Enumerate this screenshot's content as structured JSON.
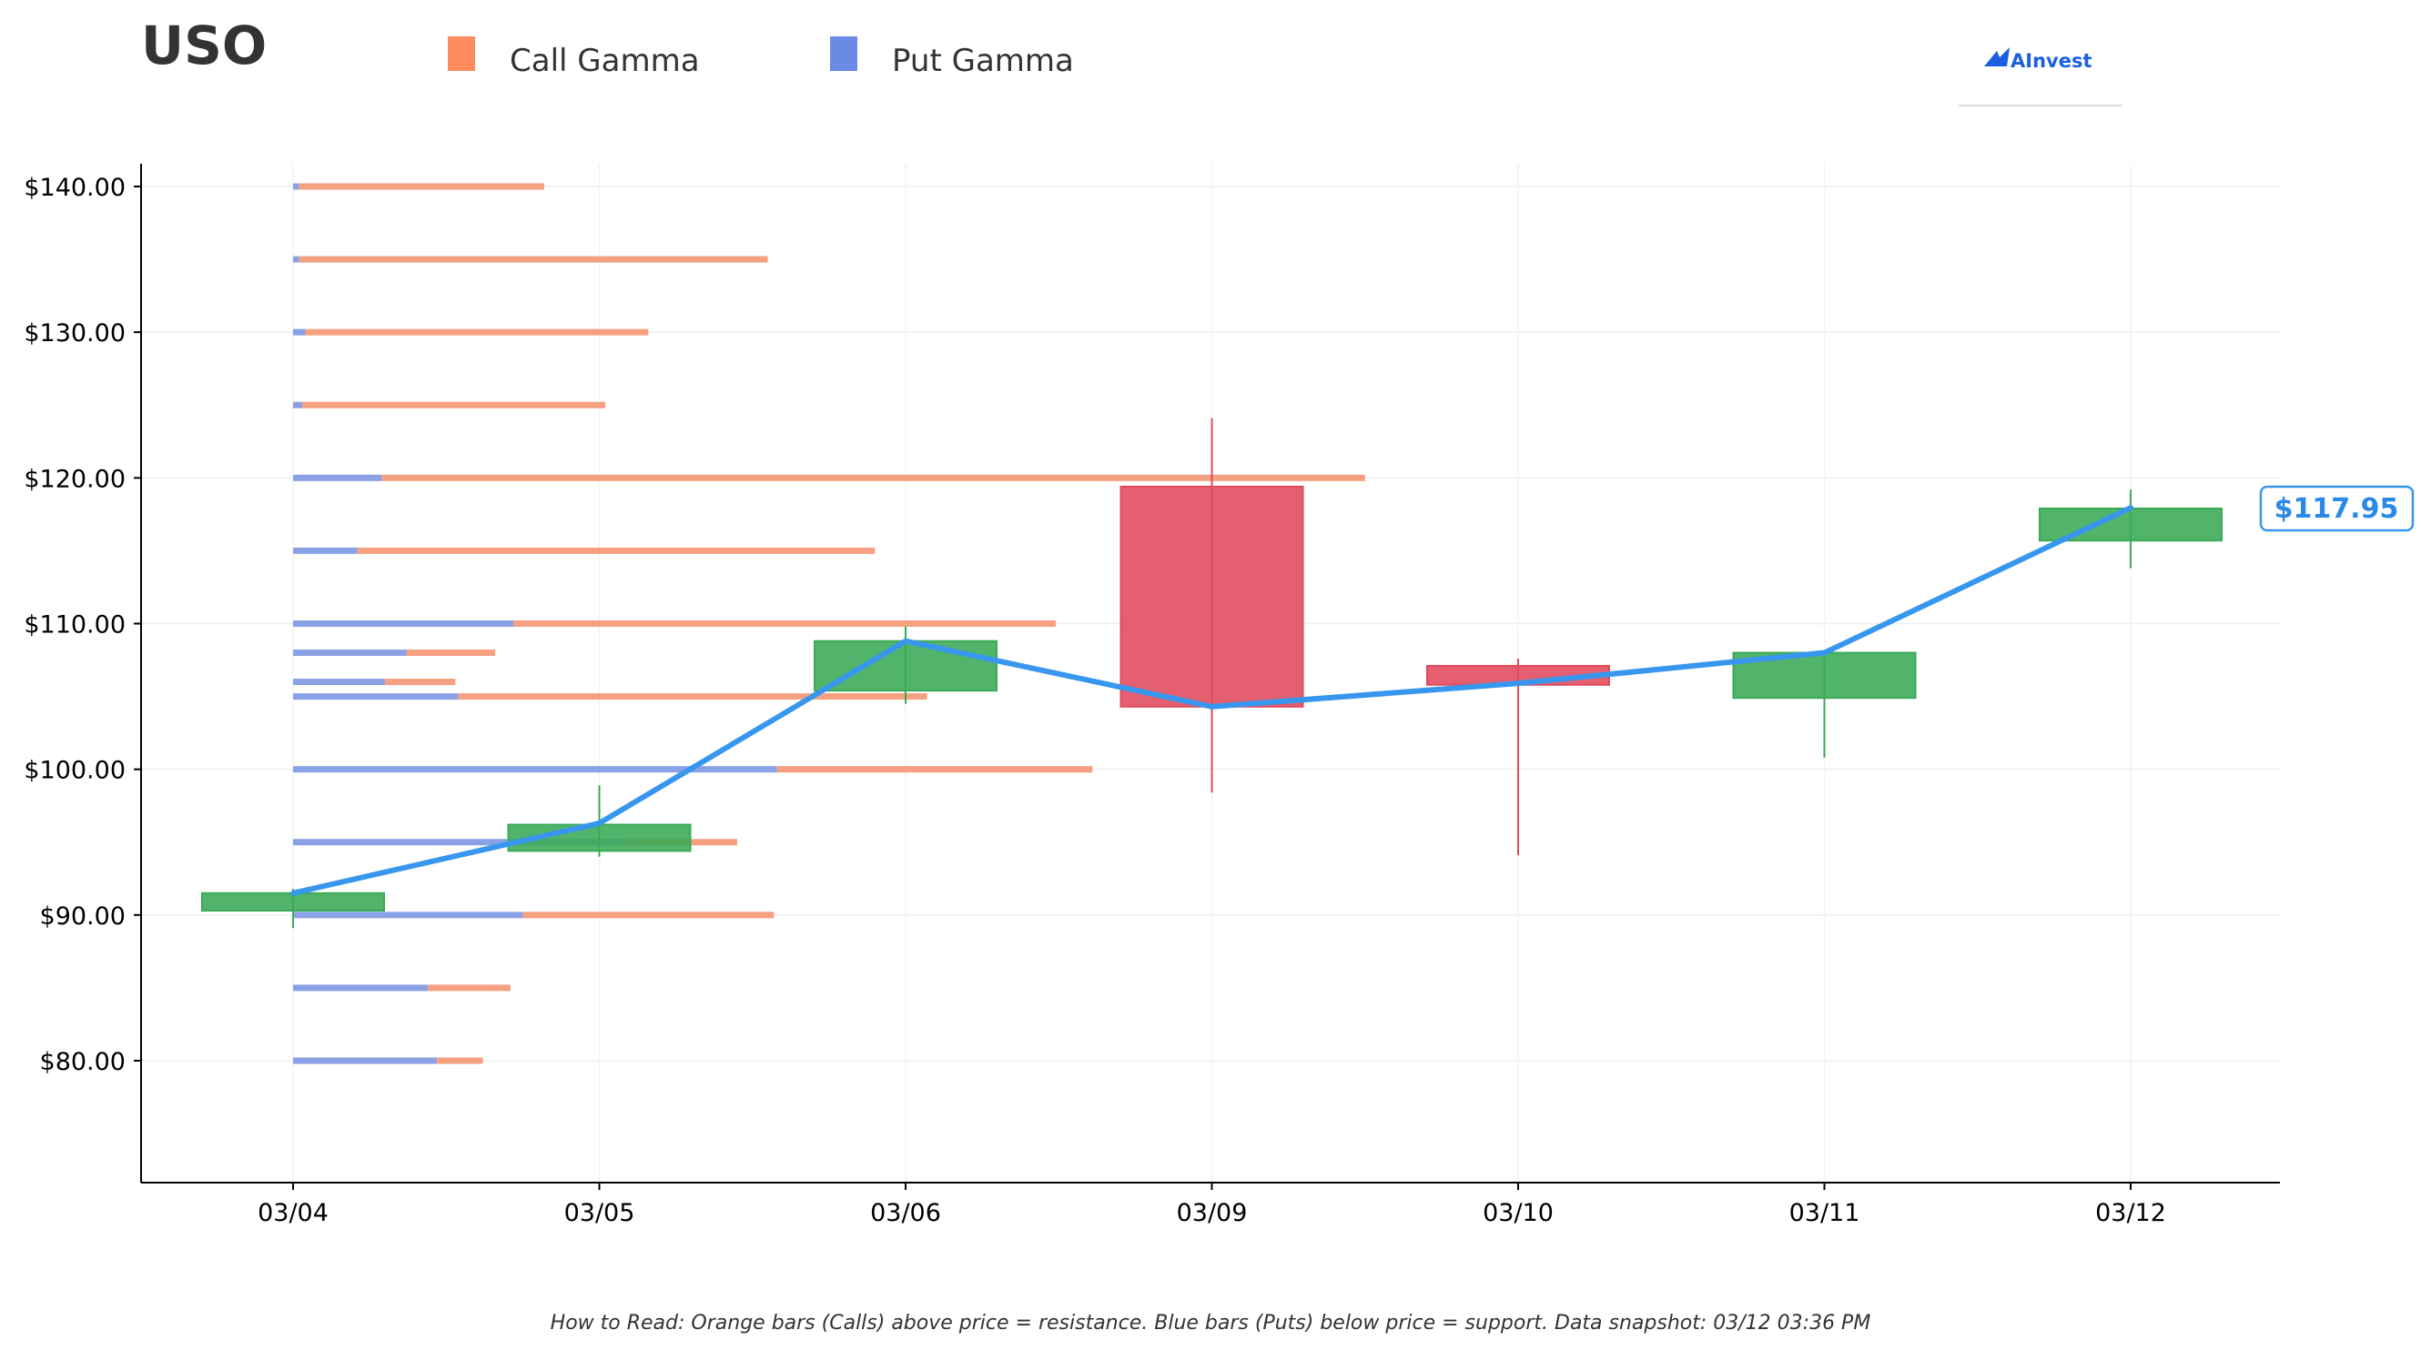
{
  "header": {
    "ticker": "USO"
  },
  "legend": [
    {
      "label": "Call Gamma",
      "color": "#ff8c5e"
    },
    {
      "label": "Put Gamma",
      "color": "#6a8ae6"
    }
  ],
  "brand": {
    "name": "AInvest",
    "color": "#1b5fe0"
  },
  "footnote": "How to Read: Orange bars (Calls) above price = resistance. Blue bars (Puts) below price = support. Data snapshot: 03/12 03:36 PM",
  "last_price_label": "$117.95",
  "colors": {
    "call": "#f5a080",
    "put": "#8aa1e6",
    "up": "#3aaa55",
    "down": "#e04a5c",
    "line": "#3796ee",
    "grid": "#eeeeee"
  },
  "chart_data": {
    "type": "candlestick",
    "title": "USO",
    "xlabel": "",
    "ylabel": "",
    "ylim": [
      71.5,
      141.5
    ],
    "yticks": [
      80,
      90,
      100,
      110,
      120,
      130,
      140
    ],
    "ytick_labels": [
      "$80.00",
      "$90.00",
      "$100.00",
      "$110.00",
      "$120.00",
      "$130.00",
      "$140.00"
    ],
    "categories": [
      "03/04",
      "03/05",
      "03/06",
      "03/09",
      "03/10",
      "03/11",
      "03/12"
    ],
    "grid": true,
    "legend_position": "top",
    "candles": [
      {
        "date": "03/04",
        "open": 90.3,
        "high": 91.8,
        "low": 89.1,
        "close": 91.5
      },
      {
        "date": "03/05",
        "open": 94.4,
        "high": 98.9,
        "low": 94.0,
        "close": 96.2
      },
      {
        "date": "03/06",
        "open": 105.4,
        "high": 109.8,
        "low": 104.5,
        "close": 108.8
      },
      {
        "date": "03/09",
        "open": 119.4,
        "high": 124.1,
        "low": 98.4,
        "close": 104.3
      },
      {
        "date": "03/10",
        "open": 107.1,
        "high": 107.6,
        "low": 94.1,
        "close": 105.8
      },
      {
        "date": "03/11",
        "open": 104.9,
        "high": 107.7,
        "low": 100.8,
        "close": 108.0
      },
      {
        "date": "03/12",
        "open": 115.7,
        "high": 119.2,
        "low": 113.8,
        "close": 117.9
      }
    ],
    "close_line": [
      {
        "date": "03/04",
        "value": 91.5
      },
      {
        "date": "03/05",
        "value": 96.3
      },
      {
        "date": "03/06",
        "value": 108.8
      },
      {
        "date": "03/09",
        "value": 104.3
      },
      {
        "date": "03/10",
        "value": 105.9
      },
      {
        "date": "03/11",
        "value": 108.0
      },
      {
        "date": "03/12",
        "value": 117.95
      }
    ],
    "gamma_units": "category widths from 03/04",
    "gamma_levels": [
      {
        "strike": 140,
        "put": 0.02,
        "call": 0.8
      },
      {
        "strike": 135,
        "put": 0.02,
        "call": 1.53
      },
      {
        "strike": 130,
        "put": 0.04,
        "call": 1.12
      },
      {
        "strike": 125,
        "put": 0.03,
        "call": 0.99
      },
      {
        "strike": 120,
        "put": 0.29,
        "call": 3.21
      },
      {
        "strike": 115,
        "put": 0.21,
        "call": 1.69
      },
      {
        "strike": 110,
        "put": 0.72,
        "call": 1.77
      },
      {
        "strike": 108,
        "put": 0.37,
        "call": 0.29
      },
      {
        "strike": 106,
        "put": 0.3,
        "call": 0.23
      },
      {
        "strike": 105,
        "put": 0.54,
        "call": 1.53
      },
      {
        "strike": 100,
        "put": 1.58,
        "call": 1.03
      },
      {
        "strike": 95,
        "put": 1.09,
        "call": 0.36
      },
      {
        "strike": 90,
        "put": 0.75,
        "call": 0.82
      },
      {
        "strike": 85,
        "put": 0.44,
        "call": 0.27
      },
      {
        "strike": 80,
        "put": 0.47,
        "call": 0.15
      }
    ]
  }
}
